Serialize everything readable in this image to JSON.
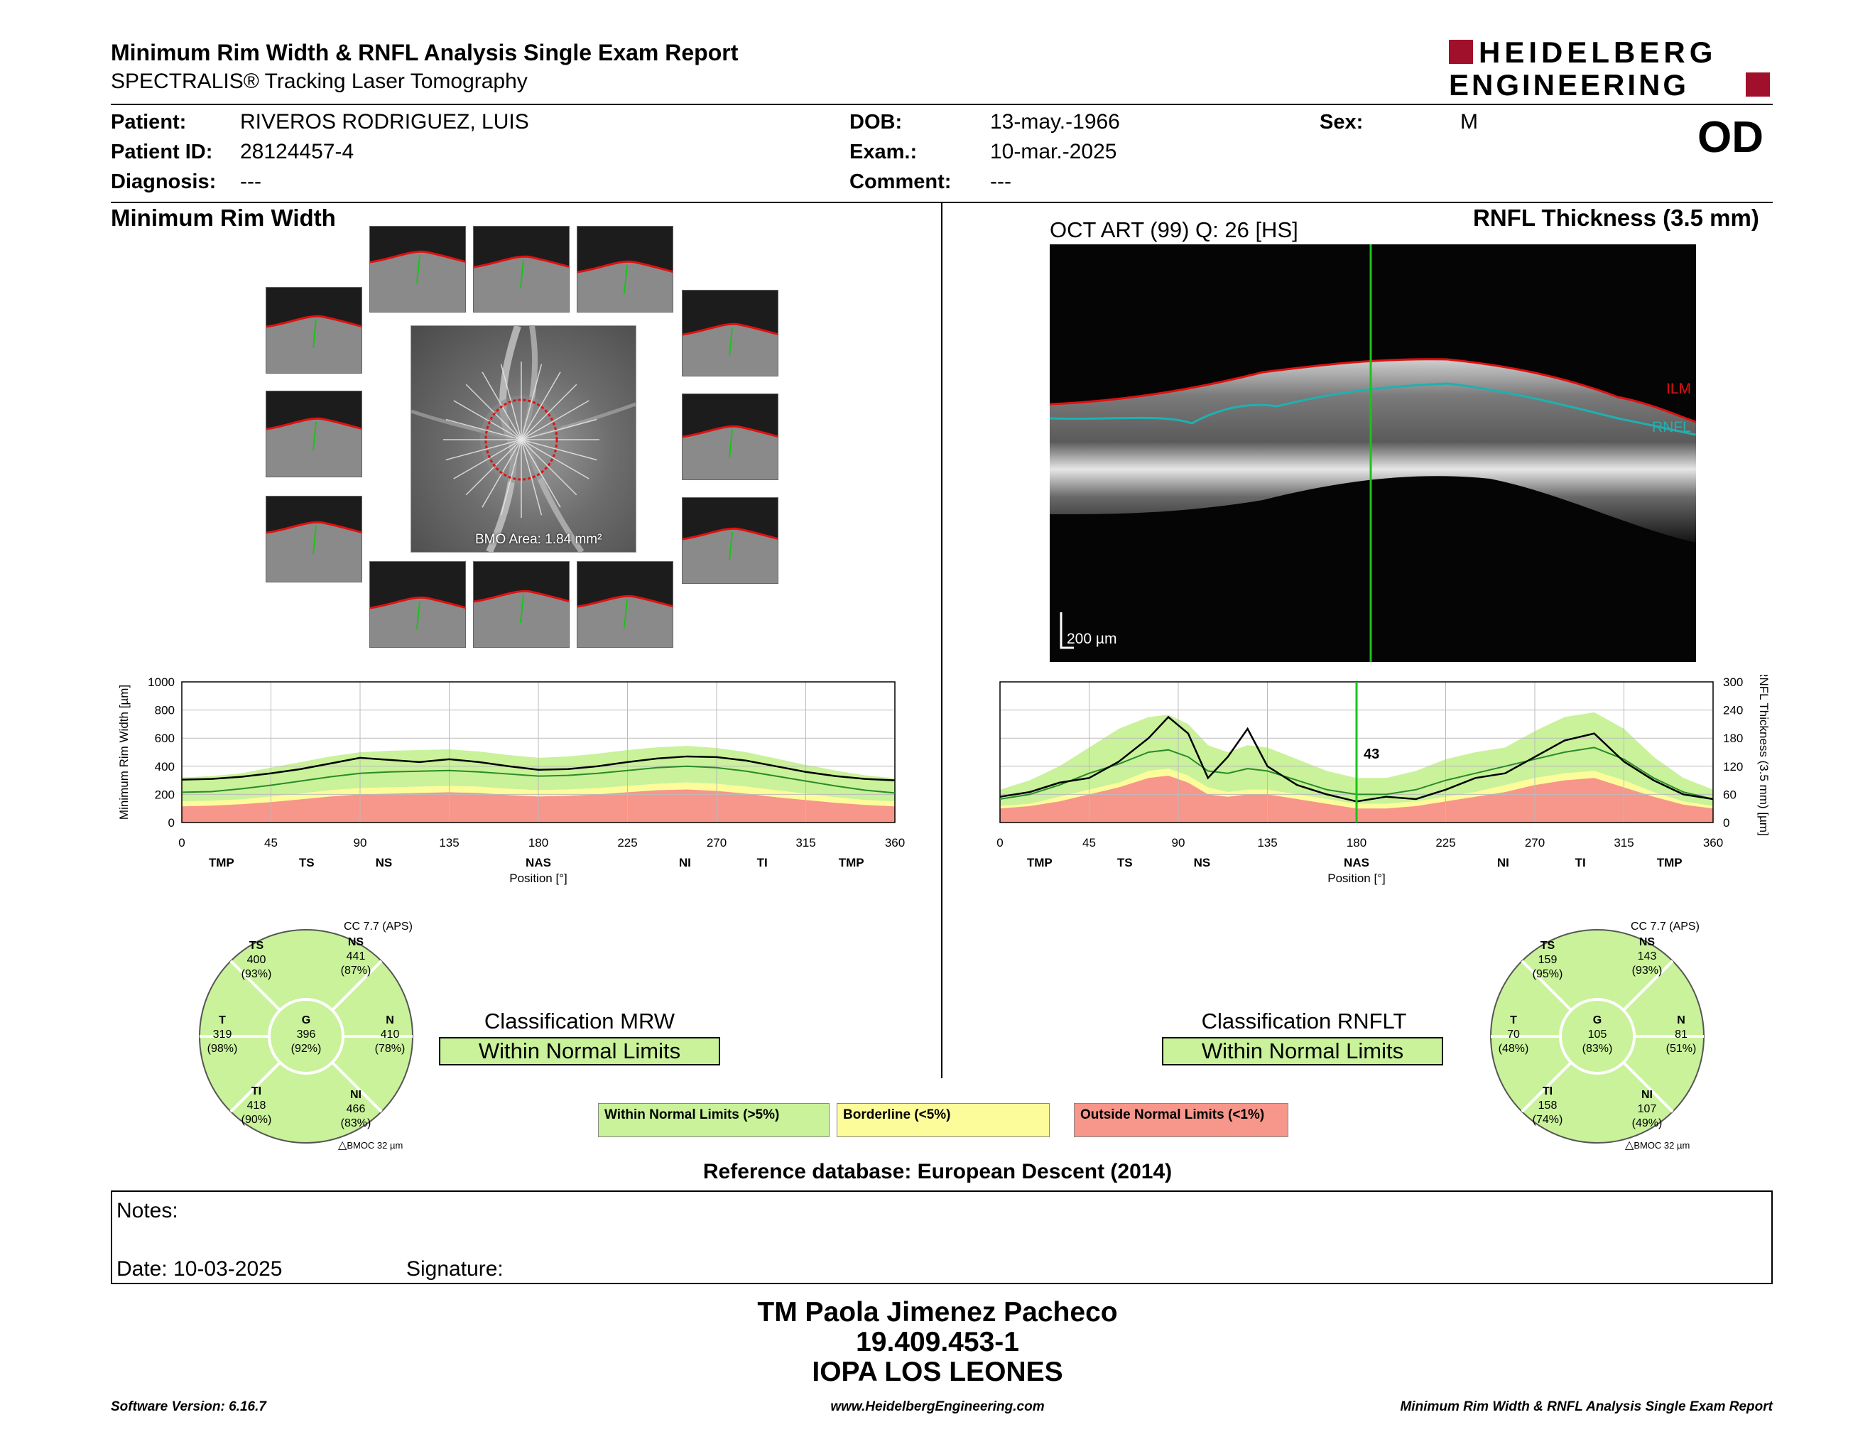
{
  "header": {
    "title": "Minimum Rim Width & RNFL Analysis Single Exam Report",
    "subtitle": "SPECTRALIS® Tracking Laser Tomography",
    "logo_line1": "HEIDELBERG",
    "logo_line2": "ENGINEERING",
    "eye": "OD"
  },
  "patient": {
    "patient_label": "Patient:",
    "patient_value": "RIVEROS RODRIGUEZ, LUIS",
    "id_label": "Patient ID:",
    "id_value": "28124457-4",
    "diagnosis_label": "Diagnosis:",
    "diagnosis_value": "---",
    "dob_label": "DOB:",
    "dob_value": "13-may.-1966",
    "exam_label": "Exam.:",
    "exam_value": "10-mar.-2025",
    "comment_label": "Comment:",
    "comment_value": "---",
    "sex_label": "Sex:",
    "sex_value": "M"
  },
  "mrw": {
    "section_title": "Minimum Rim Width",
    "bmo_area": "BMO Area: 1.84 mm²",
    "classification_title": "Classification MRW",
    "classification_value": "Within Normal Limits",
    "cc_label": "CC 7.7 (APS)",
    "bmoc_label": "BMOC 32 µm",
    "sectors": {
      "TS": {
        "name": "TS",
        "value": "400",
        "pct": "(93%)"
      },
      "NS": {
        "name": "NS",
        "value": "441",
        "pct": "(87%)"
      },
      "T": {
        "name": "T",
        "value": "319",
        "pct": "(98%)"
      },
      "G": {
        "name": "G",
        "value": "396",
        "pct": "(92%)"
      },
      "N": {
        "name": "N",
        "value": "410",
        "pct": "(78%)"
      },
      "TI": {
        "name": "TI",
        "value": "418",
        "pct": "(90%)"
      },
      "NI": {
        "name": "NI",
        "value": "466",
        "pct": "(83%)"
      }
    }
  },
  "rnfl": {
    "section_title": "RNFL Thickness (3.5 mm)",
    "oct_label": "OCT ART (99) Q: 26 [HS]",
    "ilm_label": "ILM",
    "rnfl_label": "RNFL",
    "scale_label": "200 µm",
    "classification_title": "Classification RNFLT",
    "classification_value": "Within Normal Limits",
    "cc_label": "CC 7.7 (APS)",
    "bmoc_label": "BMOC 32 µm",
    "sectors": {
      "TS": {
        "name": "TS",
        "value": "159",
        "pct": "(95%)"
      },
      "NS": {
        "name": "NS",
        "value": "143",
        "pct": "(93%)"
      },
      "T": {
        "name": "T",
        "value": "70",
        "pct": "(48%)"
      },
      "G": {
        "name": "G",
        "value": "105",
        "pct": "(83%)"
      },
      "N": {
        "name": "N",
        "value": "81",
        "pct": "(51%)"
      },
      "TI": {
        "name": "TI",
        "value": "158",
        "pct": "(74%)"
      },
      "NI": {
        "name": "NI",
        "value": "107",
        "pct": "(49%)"
      }
    }
  },
  "legend": {
    "normal": "Within Normal Limits (>5%)",
    "borderline": "Borderline (<5%)",
    "outside": "Outside Normal Limits (<1%)"
  },
  "colors": {
    "normal": "#c9f29a",
    "borderline": "#fcfc9a",
    "outside": "#f7968a",
    "ilm": "#e01010",
    "rnfl": "#20b0b0",
    "cursor": "#19c419",
    "logo": "#a0102a"
  },
  "reference_db": "Reference database: European Descent (2014)",
  "notes": {
    "notes_label": "Notes:",
    "date_label": "Date: 10-03-2025",
    "signature_label": "Signature:"
  },
  "signatory": {
    "name": "TM Paola Jimenez Pacheco",
    "id": "19.409.453-1",
    "org": "IOPA LOS LEONES"
  },
  "footer": {
    "software": "Software Version: 6.16.7",
    "website": "www.HeidelbergEngineering.com",
    "report": "Minimum Rim Width & RNFL Analysis Single Exam Report"
  },
  "chart_data": [
    {
      "type": "line",
      "ylabel": "Minimum Rim Width [µm]",
      "xlabel": "Position [°]",
      "xlim": [
        0,
        360
      ],
      "ylim": [
        0,
        1000
      ],
      "x_ticks": [
        "0",
        "45",
        "90",
        "135",
        "180",
        "225",
        "270",
        "315",
        "360"
      ],
      "y_ticks": [
        "0",
        "200",
        "400",
        "600",
        "800",
        "1000"
      ],
      "sector_labels": [
        {
          "label": "TMP",
          "x": 20
        },
        {
          "label": "TS",
          "x": 63
        },
        {
          "label": "NS",
          "x": 102
        },
        {
          "label": "NAS",
          "x": 180
        },
        {
          "label": "NI",
          "x": 254
        },
        {
          "label": "TI",
          "x": 293
        },
        {
          "label": "TMP",
          "x": 338
        }
      ],
      "x": [
        0,
        15,
        30,
        45,
        60,
        75,
        90,
        105,
        120,
        135,
        150,
        165,
        180,
        195,
        210,
        225,
        240,
        255,
        270,
        285,
        300,
        315,
        330,
        345,
        360
      ],
      "series": [
        {
          "role": "measured",
          "values": [
            305,
            310,
            325,
            350,
            380,
            420,
            460,
            445,
            430,
            450,
            430,
            400,
            375,
            380,
            400,
            430,
            455,
            470,
            465,
            440,
            400,
            360,
            330,
            310,
            300
          ]
        },
        {
          "role": "normal_mean",
          "values": [
            215,
            220,
            240,
            265,
            295,
            325,
            350,
            360,
            365,
            370,
            360,
            345,
            330,
            335,
            350,
            370,
            390,
            400,
            390,
            365,
            330,
            295,
            260,
            230,
            210
          ]
        },
        {
          "role": "upper_limit",
          "values": [
            320,
            330,
            350,
            390,
            430,
            470,
            500,
            510,
            515,
            520,
            505,
            480,
            460,
            470,
            490,
            515,
            535,
            545,
            530,
            500,
            455,
            410,
            370,
            335,
            315
          ]
        },
        {
          "role": "p5",
          "values": [
            150,
            155,
            165,
            185,
            205,
            230,
            245,
            250,
            255,
            260,
            255,
            240,
            230,
            235,
            245,
            260,
            275,
            285,
            275,
            255,
            230,
            205,
            180,
            160,
            150
          ]
        },
        {
          "role": "p1",
          "values": [
            115,
            120,
            130,
            145,
            165,
            185,
            200,
            205,
            210,
            215,
            210,
            195,
            185,
            190,
            200,
            215,
            230,
            235,
            225,
            205,
            180,
            160,
            140,
            125,
            115
          ]
        }
      ]
    },
    {
      "type": "line",
      "ylabel": "RNFL Thickness (3.5 mm) [µm]",
      "xlabel": "Position [°]",
      "xlim": [
        0,
        360
      ],
      "ylim": [
        0,
        300
      ],
      "x_ticks": [
        "0",
        "45",
        "90",
        "135",
        "180",
        "225",
        "270",
        "315",
        "360"
      ],
      "y_ticks": [
        "0",
        "60",
        "120",
        "180",
        "240",
        "300"
      ],
      "cursor": {
        "x": 180,
        "label": "43"
      },
      "sector_labels": [
        {
          "label": "TMP",
          "x": 20
        },
        {
          "label": "TS",
          "x": 63
        },
        {
          "label": "NS",
          "x": 102
        },
        {
          "label": "NAS",
          "x": 180
        },
        {
          "label": "NI",
          "x": 254
        },
        {
          "label": "TI",
          "x": 293
        },
        {
          "label": "TMP",
          "x": 338
        }
      ],
      "x": [
        0,
        15,
        30,
        45,
        60,
        75,
        85,
        95,
        105,
        115,
        125,
        135,
        150,
        165,
        180,
        195,
        210,
        225,
        240,
        255,
        270,
        285,
        300,
        315,
        330,
        345,
        360
      ],
      "series": [
        {
          "role": "measured",
          "values": [
            55,
            65,
            85,
            95,
            130,
            180,
            225,
            190,
            95,
            140,
            200,
            120,
            80,
            60,
            45,
            55,
            50,
            70,
            95,
            105,
            140,
            175,
            190,
            130,
            90,
            60,
            50
          ]
        },
        {
          "role": "normal_mean",
          "values": [
            50,
            60,
            80,
            105,
            125,
            150,
            155,
            140,
            110,
            105,
            115,
            110,
            90,
            70,
            60,
            60,
            70,
            90,
            105,
            120,
            135,
            150,
            160,
            135,
            95,
            65,
            50
          ]
        },
        {
          "role": "upper_limit",
          "values": [
            70,
            90,
            120,
            160,
            200,
            225,
            230,
            210,
            165,
            150,
            165,
            160,
            135,
            110,
            95,
            95,
            110,
            135,
            150,
            160,
            195,
            225,
            235,
            200,
            140,
            95,
            70
          ]
        },
        {
          "role": "p5",
          "values": [
            35,
            40,
            55,
            70,
            85,
            110,
            115,
            100,
            75,
            65,
            70,
            70,
            60,
            50,
            40,
            40,
            45,
            55,
            65,
            80,
            95,
            105,
            110,
            90,
            65,
            45,
            35
          ]
        },
        {
          "role": "p1",
          "values": [
            30,
            35,
            45,
            60,
            75,
            95,
            100,
            85,
            60,
            55,
            60,
            60,
            50,
            40,
            30,
            30,
            35,
            45,
            55,
            65,
            80,
            90,
            95,
            75,
            55,
            38,
            30
          ]
        }
      ]
    }
  ]
}
